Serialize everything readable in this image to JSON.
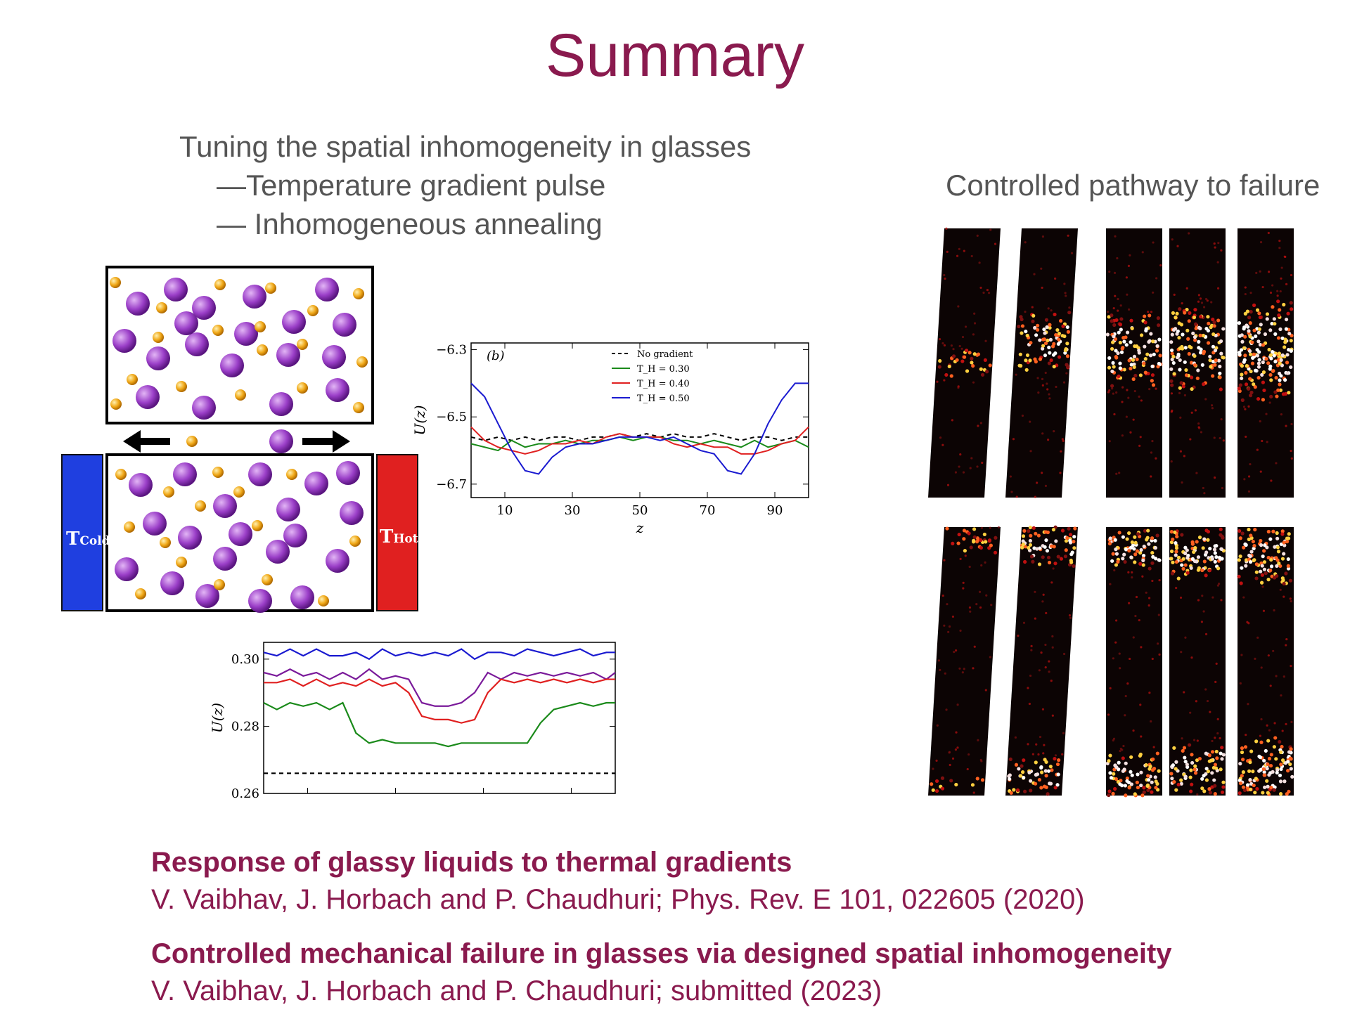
{
  "slide": {
    "title": "Summary",
    "tuning_heading": "Tuning the spatial inhomogeneity in glasses",
    "tuning_item_1": "—Temperature gradient pulse",
    "tuning_item_2": "— Inhomogeneous annealing",
    "failure_heading": "Controlled pathway to failure"
  },
  "diagram": {
    "t_cold_main": "T",
    "t_cold_sub": "Cold",
    "t_hot_main": "T",
    "t_hot_sub": "Hot",
    "cold_color": "#1f3fe0",
    "hot_color": "#e02020",
    "large_particle_color": "#9b3fc8",
    "small_particle_color": "#f0a818"
  },
  "references": [
    {
      "title": "Response of glassy liquids to thermal gradients",
      "authors": "V. Vaibhav, J. Horbach and P. Chaudhuri;  Phys. Rev. E 101, 022605 (2020)"
    },
    {
      "title": "Controlled mechanical failure in glasses via designed spatial inhomogeneity",
      "authors": "V. Vaibhav, J. Horbach and P. Chaudhuri;  submitted (2023)"
    }
  ],
  "chart_data": [
    {
      "type": "line",
      "panel_label": "(b)",
      "xlabel": "z",
      "ylabel": "U(z)",
      "xlim": [
        0,
        100
      ],
      "ylim": [
        -6.74,
        -6.28
      ],
      "xticks": [
        10,
        30,
        50,
        70,
        90
      ],
      "yticks": [
        -6.3,
        -6.5,
        -6.7
      ],
      "ytick_labels": [
        "−6.3",
        "−6.5",
        "−6.7"
      ],
      "legend_position": "top-center",
      "x": [
        0,
        4,
        8,
        12,
        16,
        20,
        24,
        28,
        32,
        36,
        40,
        44,
        48,
        52,
        56,
        60,
        64,
        68,
        72,
        76,
        80,
        84,
        88,
        92,
        96,
        100
      ],
      "series": [
        {
          "name": "No gradient",
          "color": "#000000",
          "dashed": true,
          "values": [
            -6.56,
            -6.57,
            -6.56,
            -6.57,
            -6.56,
            -6.57,
            -6.56,
            -6.56,
            -6.57,
            -6.56,
            -6.56,
            -6.55,
            -6.56,
            -6.55,
            -6.56,
            -6.55,
            -6.56,
            -6.56,
            -6.55,
            -6.56,
            -6.57,
            -6.56,
            -6.56,
            -6.57,
            -6.56,
            -6.56
          ]
        },
        {
          "name": "T_H = 0.30",
          "color": "#1a8a1a",
          "dashed": false,
          "values": [
            -6.58,
            -6.59,
            -6.6,
            -6.57,
            -6.59,
            -6.58,
            -6.58,
            -6.57,
            -6.58,
            -6.57,
            -6.57,
            -6.56,
            -6.57,
            -6.56,
            -6.56,
            -6.57,
            -6.57,
            -6.58,
            -6.57,
            -6.58,
            -6.59,
            -6.57,
            -6.59,
            -6.58,
            -6.57,
            -6.59
          ]
        },
        {
          "name": "T_H = 0.40",
          "color": "#e02020",
          "dashed": false,
          "values": [
            -6.53,
            -6.57,
            -6.59,
            -6.6,
            -6.61,
            -6.6,
            -6.58,
            -6.58,
            -6.57,
            -6.58,
            -6.56,
            -6.55,
            -6.56,
            -6.56,
            -6.56,
            -6.58,
            -6.59,
            -6.58,
            -6.59,
            -6.59,
            -6.61,
            -6.61,
            -6.6,
            -6.58,
            -6.57,
            -6.53
          ]
        },
        {
          "name": "T_H = 0.50",
          "color": "#1a1ad0",
          "dashed": false,
          "values": [
            -6.4,
            -6.44,
            -6.52,
            -6.6,
            -6.66,
            -6.67,
            -6.62,
            -6.59,
            -6.58,
            -6.58,
            -6.57,
            -6.56,
            -6.56,
            -6.56,
            -6.57,
            -6.56,
            -6.58,
            -6.6,
            -6.61,
            -6.66,
            -6.67,
            -6.61,
            -6.52,
            -6.45,
            -6.4,
            -6.4
          ]
        }
      ]
    },
    {
      "type": "line",
      "xlabel": "",
      "ylabel": "U(z)",
      "xlim": [
        0,
        80
      ],
      "ylim": [
        0.26,
        0.305
      ],
      "yticks": [
        0.26,
        0.28,
        0.3
      ],
      "ytick_labels": [
        "0.26",
        "0.28",
        "0.30"
      ],
      "x": [
        0,
        3,
        6,
        9,
        12,
        15,
        18,
        21,
        24,
        27,
        30,
        33,
        36,
        39,
        42,
        45,
        48,
        51,
        54,
        57,
        60,
        63,
        66,
        69,
        72,
        75,
        78,
        80
      ],
      "series": [
        {
          "color": "#1a1ad0",
          "dashed": false,
          "values": [
            0.302,
            0.301,
            0.303,
            0.301,
            0.303,
            0.301,
            0.301,
            0.302,
            0.3,
            0.303,
            0.301,
            0.302,
            0.301,
            0.302,
            0.301,
            0.303,
            0.3,
            0.302,
            0.302,
            0.301,
            0.303,
            0.302,
            0.301,
            0.302,
            0.303,
            0.301,
            0.302,
            0.302
          ]
        },
        {
          "color": "#7a1a9a",
          "dashed": false,
          "values": [
            0.296,
            0.295,
            0.297,
            0.295,
            0.296,
            0.294,
            0.296,
            0.294,
            0.297,
            0.294,
            0.295,
            0.294,
            0.287,
            0.286,
            0.286,
            0.287,
            0.29,
            0.296,
            0.294,
            0.296,
            0.295,
            0.296,
            0.295,
            0.296,
            0.295,
            0.296,
            0.294,
            0.296
          ]
        },
        {
          "color": "#e02020",
          "dashed": false,
          "values": [
            0.293,
            0.293,
            0.294,
            0.292,
            0.294,
            0.292,
            0.293,
            0.292,
            0.294,
            0.292,
            0.293,
            0.29,
            0.283,
            0.282,
            0.282,
            0.281,
            0.282,
            0.29,
            0.294,
            0.293,
            0.294,
            0.293,
            0.294,
            0.293,
            0.294,
            0.293,
            0.294,
            0.294
          ]
        },
        {
          "color": "#1a8a1a",
          "dashed": false,
          "values": [
            0.287,
            0.285,
            0.287,
            0.286,
            0.287,
            0.285,
            0.287,
            0.278,
            0.275,
            0.276,
            0.275,
            0.275,
            0.275,
            0.275,
            0.274,
            0.275,
            0.275,
            0.275,
            0.275,
            0.275,
            0.275,
            0.281,
            0.285,
            0.286,
            0.287,
            0.286,
            0.287,
            0.287
          ]
        },
        {
          "color": "#000000",
          "dashed": true,
          "values": [
            0.266,
            0.266,
            0.266,
            0.266,
            0.266,
            0.266,
            0.266,
            0.266,
            0.266,
            0.266,
            0.266,
            0.266,
            0.266,
            0.266,
            0.266,
            0.266,
            0.266,
            0.266,
            0.266,
            0.266,
            0.266,
            0.266,
            0.266,
            0.266,
            0.266,
            0.266,
            0.266,
            0.266
          ]
        }
      ]
    }
  ]
}
